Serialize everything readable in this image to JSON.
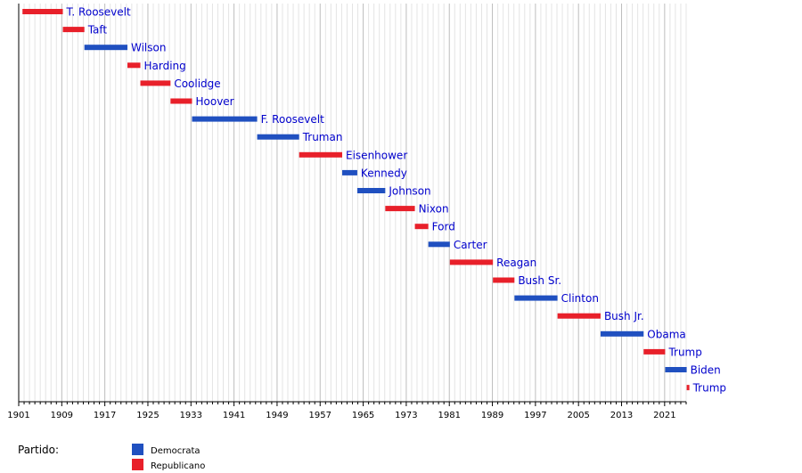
{
  "chart_data": {
    "type": "bar",
    "orientation": "horizontal-timeline",
    "xlim": [
      1901,
      2025
    ],
    "x_ticks": [
      1901,
      1909,
      1917,
      1925,
      1933,
      1941,
      1949,
      1957,
      1965,
      1973,
      1981,
      1989,
      1997,
      2005,
      2013,
      2021
    ],
    "grid": true,
    "legend_position": "bottom-left",
    "legend_title": "Partido:",
    "parties": [
      {
        "key": "dem",
        "name": "Democrata",
        "color": "#2050c0"
      },
      {
        "key": "rep",
        "name": "Republicano",
        "color": "#e8202a"
      }
    ],
    "series": [
      {
        "name": "T. Roosevelt",
        "start": 1901.7,
        "end": 1909.2,
        "party": "rep"
      },
      {
        "name": "Taft",
        "start": 1909.2,
        "end": 1913.2,
        "party": "rep"
      },
      {
        "name": "Wilson",
        "start": 1913.2,
        "end": 1921.2,
        "party": "dem"
      },
      {
        "name": "Harding",
        "start": 1921.2,
        "end": 1923.6,
        "party": "rep"
      },
      {
        "name": "Coolidge",
        "start": 1923.6,
        "end": 1929.2,
        "party": "rep"
      },
      {
        "name": "Hoover",
        "start": 1929.2,
        "end": 1933.2,
        "party": "rep"
      },
      {
        "name": "F. Roosevelt",
        "start": 1933.2,
        "end": 1945.3,
        "party": "dem"
      },
      {
        "name": "Truman",
        "start": 1945.3,
        "end": 1953.1,
        "party": "dem"
      },
      {
        "name": "Eisenhower",
        "start": 1953.1,
        "end": 1961.1,
        "party": "rep"
      },
      {
        "name": "Kennedy",
        "start": 1961.1,
        "end": 1963.9,
        "party": "dem"
      },
      {
        "name": "Johnson",
        "start": 1963.9,
        "end": 1969.1,
        "party": "dem"
      },
      {
        "name": "Nixon",
        "start": 1969.1,
        "end": 1974.6,
        "party": "rep"
      },
      {
        "name": "Ford",
        "start": 1974.6,
        "end": 1977.1,
        "party": "rep"
      },
      {
        "name": "Carter",
        "start": 1977.1,
        "end": 1981.1,
        "party": "dem"
      },
      {
        "name": "Reagan",
        "start": 1981.1,
        "end": 1989.1,
        "party": "rep"
      },
      {
        "name": "Bush Sr.",
        "start": 1989.1,
        "end": 1993.1,
        "party": "rep"
      },
      {
        "name": "Clinton",
        "start": 1993.1,
        "end": 2001.1,
        "party": "dem"
      },
      {
        "name": "Bush Jr.",
        "start": 2001.1,
        "end": 2009.1,
        "party": "rep"
      },
      {
        "name": "Obama",
        "start": 2009.1,
        "end": 2017.1,
        "party": "dem"
      },
      {
        "name": "Trump",
        "start": 2017.1,
        "end": 2021.1,
        "party": "rep"
      },
      {
        "name": "Biden",
        "start": 2021.1,
        "end": 2025.1,
        "party": "dem"
      },
      {
        "name": "Trump",
        "start": 2025.1,
        "end": 2025.6,
        "party": "rep"
      }
    ]
  }
}
